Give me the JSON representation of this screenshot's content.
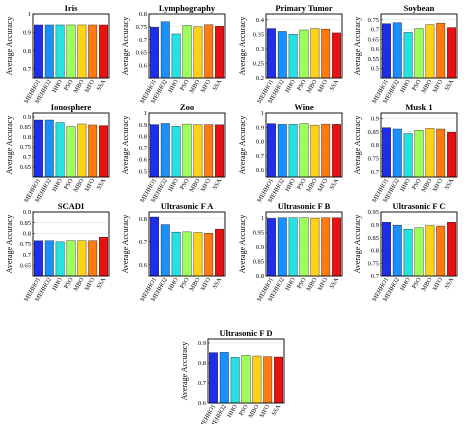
{
  "ylabel": "Average Accuracy",
  "categories": [
    "MEHHO1",
    "MEHHO2",
    "HHO",
    "PSO",
    "MBO",
    "MFO",
    "SSA"
  ],
  "colors": [
    "#1f2ee8",
    "#1a90ff",
    "#27e0e0",
    "#9cff5a",
    "#ffd21a",
    "#ff7a10",
    "#e81010"
  ],
  "chart_data": [
    {
      "type": "bar",
      "title": "Iris",
      "ylim": [
        0.65,
        1.0
      ],
      "yticks": [
        "0.7",
        "0.8",
        "0.9",
        "1"
      ],
      "ytick_values": [
        0.7,
        0.8,
        0.9,
        1.0
      ],
      "values": [
        0.94,
        0.94,
        0.94,
        0.94,
        0.94,
        0.94,
        0.94
      ]
    },
    {
      "type": "bar",
      "title": "Lymphography",
      "ylim": [
        0.55,
        0.8
      ],
      "yticks": [
        "0.6",
        "0.65",
        "0.7",
        "0.75",
        "0.8"
      ],
      "ytick_values": [
        0.6,
        0.65,
        0.7,
        0.75,
        0.8
      ],
      "values": [
        0.748,
        0.77,
        0.722,
        0.755,
        0.75,
        0.758,
        0.752
      ]
    },
    {
      "type": "bar",
      "title": "Primary Tumor",
      "ylim": [
        0.2,
        0.42
      ],
      "yticks": [
        "0.2",
        "0.25",
        "0.3",
        "0.35",
        "0.4"
      ],
      "ytick_values": [
        0.2,
        0.25,
        0.3,
        0.35,
        0.4
      ],
      "values": [
        0.37,
        0.36,
        0.35,
        0.365,
        0.37,
        0.368,
        0.355
      ]
    },
    {
      "type": "bar",
      "title": "Soybean",
      "ylim": [
        0.45,
        0.78
      ],
      "yticks": [
        "0.5",
        "0.55",
        "0.6",
        "0.65",
        "0.7",
        "0.75"
      ],
      "ytick_values": [
        0.5,
        0.55,
        0.6,
        0.65,
        0.7,
        0.75
      ],
      "values": [
        0.73,
        0.735,
        0.685,
        0.705,
        0.725,
        0.733,
        0.71
      ]
    },
    {
      "type": "bar",
      "title": "Ionosphere",
      "ylim": [
        0.6,
        0.92
      ],
      "yticks": [
        "0.65",
        "0.7",
        "0.75",
        "0.8",
        "0.85",
        "0.9"
      ],
      "ytick_values": [
        0.65,
        0.7,
        0.75,
        0.8,
        0.85,
        0.9
      ],
      "values": [
        0.885,
        0.885,
        0.872,
        0.852,
        0.865,
        0.86,
        0.857
      ]
    },
    {
      "type": "bar",
      "title": "Zoo",
      "ylim": [
        0.45,
        1.0
      ],
      "yticks": [
        "0.5",
        "0.6",
        "0.7",
        "0.8",
        "0.9",
        "1"
      ],
      "ytick_values": [
        0.5,
        0.6,
        0.7,
        0.8,
        0.9,
        1.0
      ],
      "values": [
        0.9,
        0.91,
        0.885,
        0.905,
        0.898,
        0.9,
        0.898
      ]
    },
    {
      "type": "bar",
      "title": "Wine",
      "ylim": [
        0.55,
        1.0
      ],
      "yticks": [
        "0.6",
        "0.7",
        "0.8",
        "0.9",
        "1"
      ],
      "ytick_values": [
        0.6,
        0.7,
        0.8,
        0.9,
        1.0
      ],
      "values": [
        0.925,
        0.92,
        0.92,
        0.925,
        0.915,
        0.922,
        0.92
      ]
    },
    {
      "type": "bar",
      "title": "Musk 1",
      "ylim": [
        0.68,
        0.92
      ],
      "yticks": [
        "0.7",
        "0.75",
        "0.8",
        "0.85",
        "0.9"
      ],
      "ytick_values": [
        0.7,
        0.75,
        0.8,
        0.85,
        0.9
      ],
      "values": [
        0.865,
        0.86,
        0.843,
        0.855,
        0.862,
        0.86,
        0.848
      ]
    },
    {
      "type": "bar",
      "title": "SCADI",
      "ylim": [
        0.6,
        0.9
      ],
      "yticks": [
        "0.65",
        "0.7",
        "0.75",
        "0.8",
        "0.85",
        "0.9"
      ],
      "ytick_values": [
        0.65,
        0.7,
        0.75,
        0.8,
        0.85,
        0.9
      ],
      "values": [
        0.765,
        0.765,
        0.76,
        0.765,
        0.765,
        0.765,
        0.782
      ]
    },
    {
      "type": "bar",
      "title": "Ultrasonic F A",
      "ylim": [
        0.55,
        0.83
      ],
      "yticks": [
        "0.6",
        "0.7",
        "0.8"
      ],
      "ytick_values": [
        0.6,
        0.7,
        0.8
      ],
      "values": [
        0.808,
        0.775,
        0.742,
        0.743,
        0.74,
        0.737,
        0.755
      ]
    },
    {
      "type": "bar",
      "title": "Ultrasonic F B",
      "ylim": [
        0.8,
        1.02
      ],
      "yticks": [
        "0.8",
        "0.85",
        "0.9",
        "0.95",
        "1"
      ],
      "ytick_values": [
        0.8,
        0.85,
        0.9,
        0.95,
        1.0
      ],
      "values": [
        0.998,
        1.0,
        1.0,
        1.0,
        0.999,
        1.0,
        1.0
      ]
    },
    {
      "type": "bar",
      "title": "Ultrasonic F C",
      "ylim": [
        0.7,
        0.95
      ],
      "yticks": [
        "0.7",
        "0.75",
        "0.8",
        "0.85",
        "0.9",
        "0.95"
      ],
      "ytick_values": [
        0.7,
        0.75,
        0.8,
        0.85,
        0.9,
        0.95
      ],
      "values": [
        0.91,
        0.898,
        0.883,
        0.888,
        0.897,
        0.895,
        0.91
      ]
    },
    {
      "type": "bar",
      "title": "Ultrasonic F D",
      "ylim": [
        0.6,
        0.92
      ],
      "yticks": [
        "0.6",
        "0.7",
        "0.8",
        "0.9"
      ],
      "ytick_values": [
        0.6,
        0.7,
        0.8,
        0.9
      ],
      "values": [
        0.852,
        0.853,
        0.828,
        0.838,
        0.835,
        0.832,
        0.83
      ]
    }
  ]
}
